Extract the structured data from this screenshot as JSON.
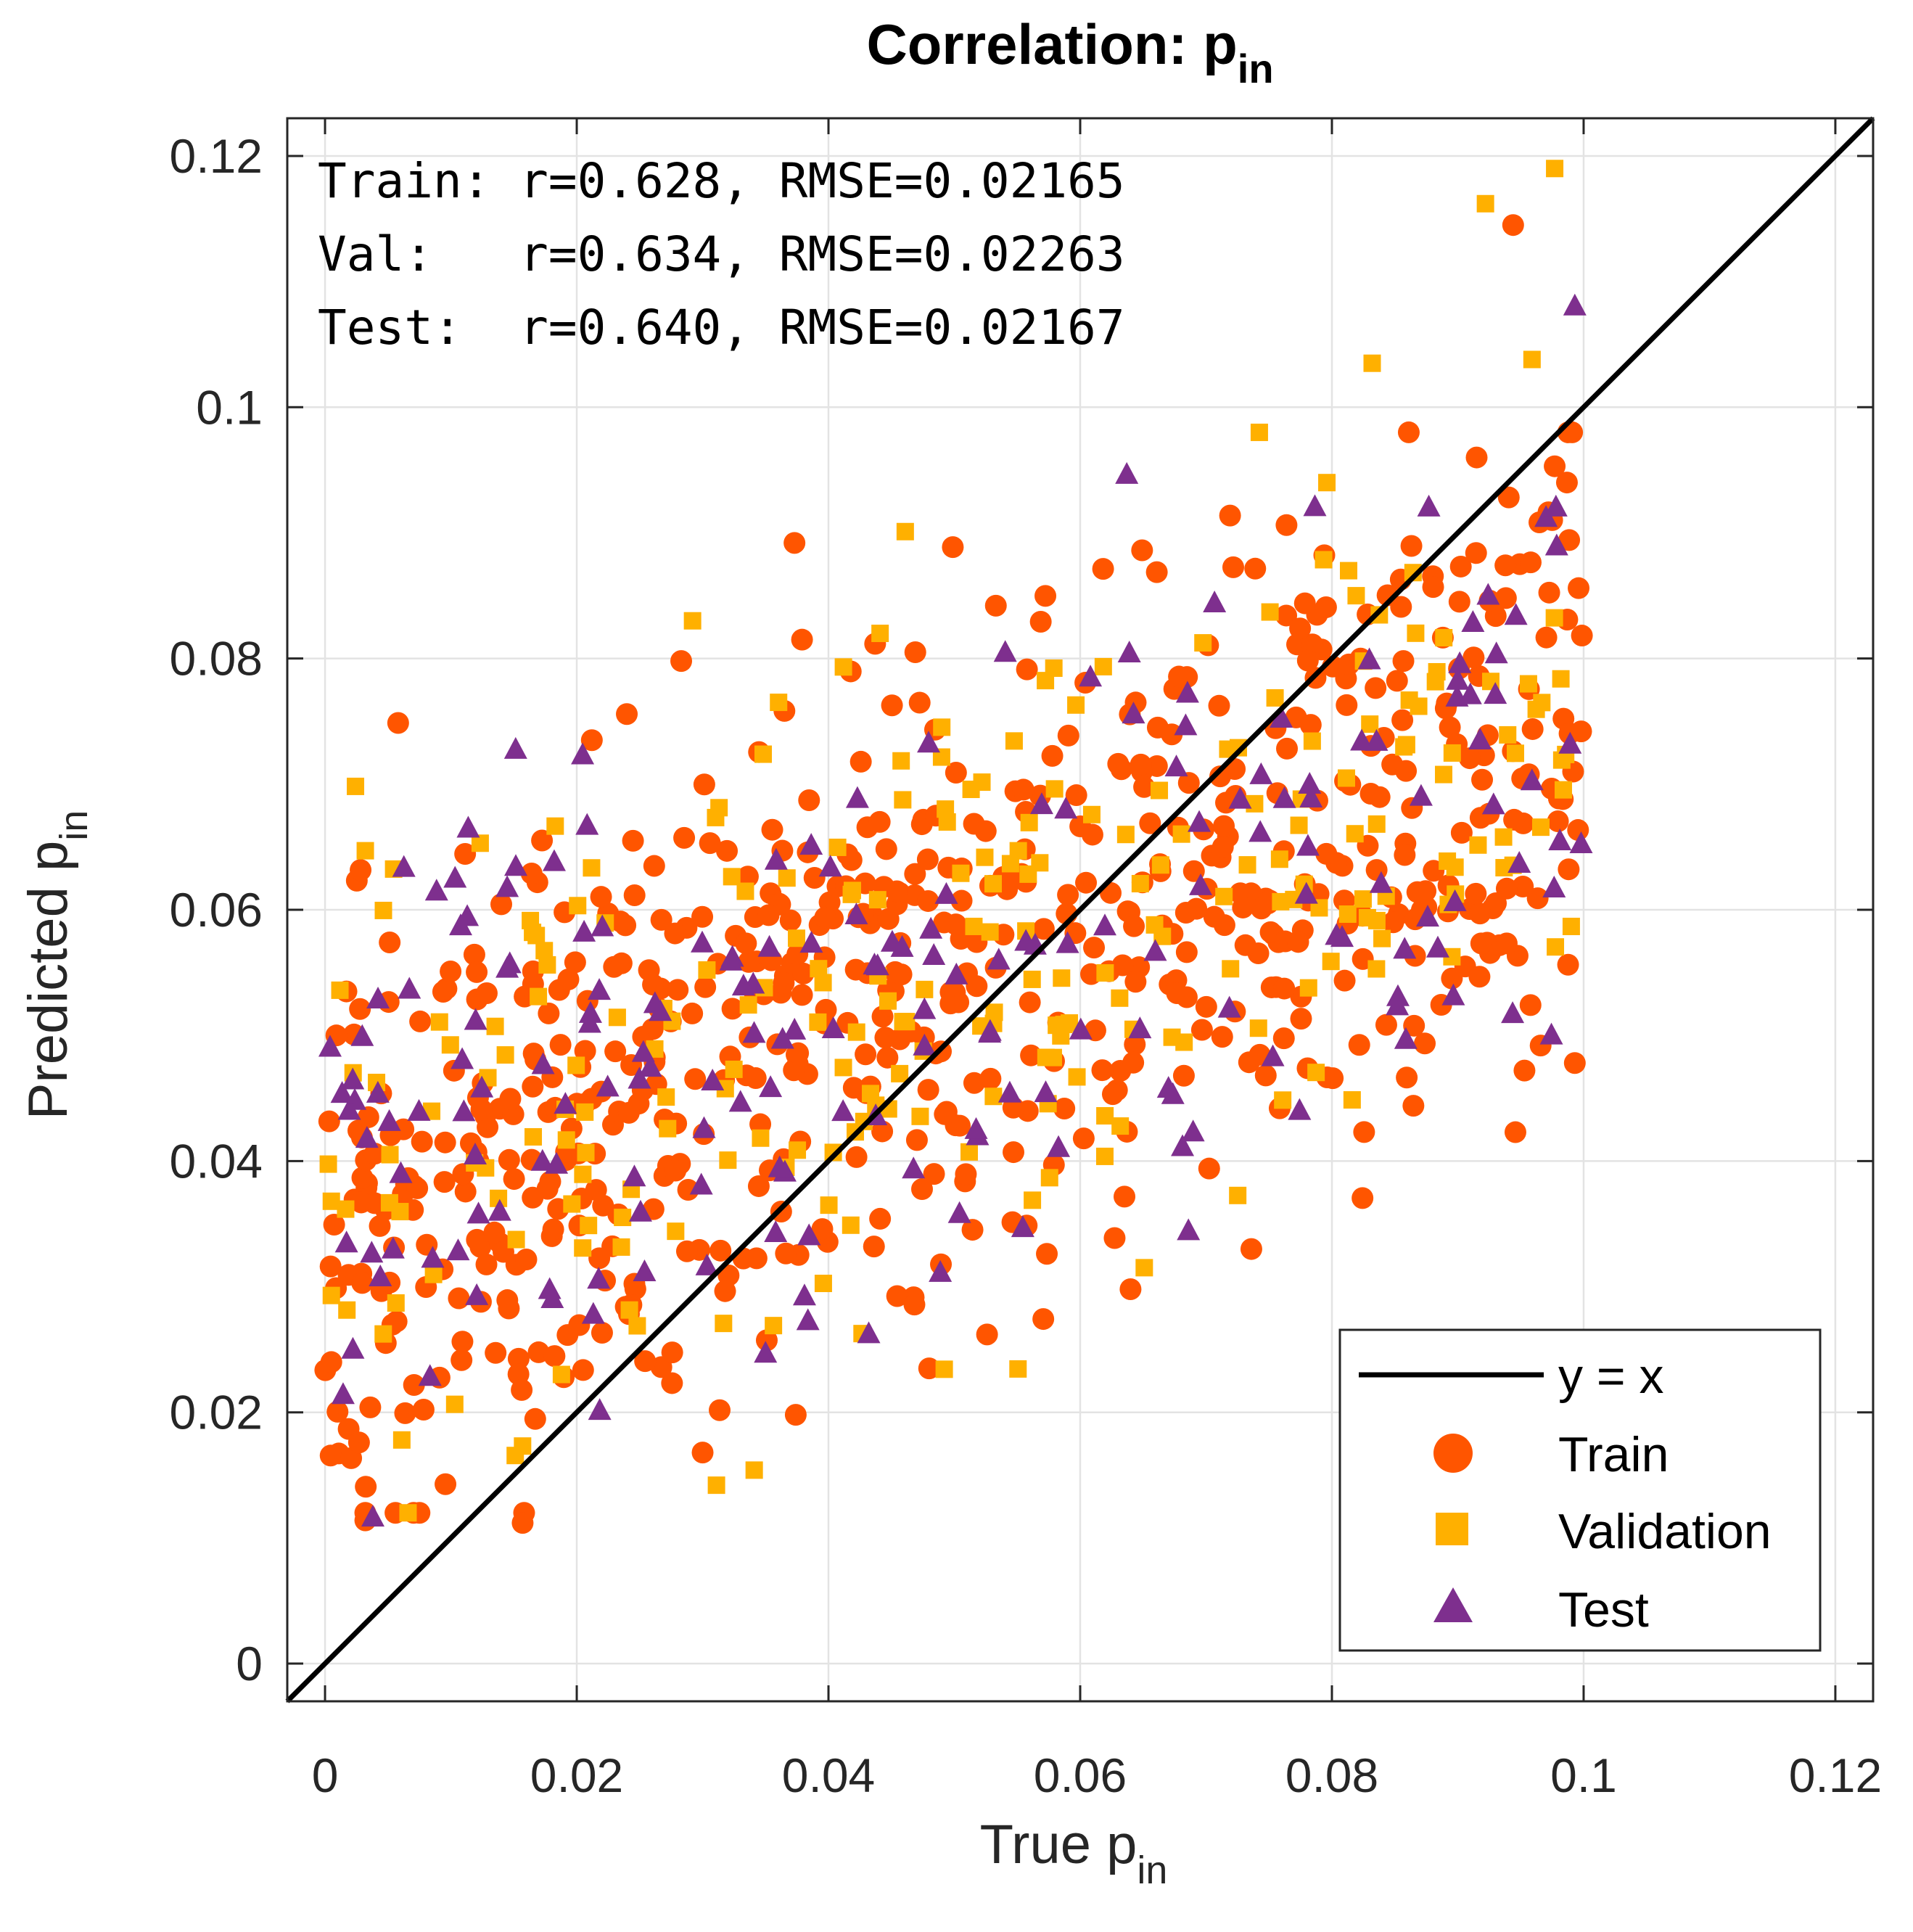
{
  "chart_data": {
    "type": "scatter",
    "title": "Correlation: p",
    "title_sub": "in",
    "xlabel": "True p",
    "xlabel_sub": "in",
    "ylabel": "Predicted p",
    "ylabel_sub": "in",
    "xlim": [
      -0.003,
      0.123
    ],
    "ylim": [
      -0.003,
      0.123
    ],
    "xticks": [
      0,
      0.02,
      0.04,
      0.06,
      0.08,
      0.1,
      0.12
    ],
    "yticks": [
      0,
      0.02,
      0.04,
      0.06,
      0.08,
      0.1,
      0.12
    ],
    "xtick_labels": [
      "0",
      "0.02",
      "0.04",
      "0.06",
      "0.08",
      "0.1",
      "0.12"
    ],
    "ytick_labels": [
      "0",
      "0.02",
      "0.04",
      "0.06",
      "0.08",
      "0.1",
      "0.12"
    ],
    "grid": true,
    "legend_position": "bottom-right",
    "stats": [
      "Train: r=0.628, RMSE=0.02165",
      "Val:   r=0.634, RMSE=0.02263",
      "Test:  r=0.640, RMSE=0.02167"
    ],
    "reference_line": {
      "name": "y = x",
      "slope": 1,
      "intercept": 0,
      "color": "#000000"
    },
    "series": [
      {
        "name": "Train",
        "marker": "circle",
        "color": "#FF5500",
        "count": 700,
        "trend": {
          "y_at_x0": 0.036,
          "y_at_x01": 0.074,
          "spread": 0.0125
        },
        "points": [
          [
            0.0373,
            0.0892
          ],
          [
            0.0944,
            0.1145
          ],
          [
            0.0283,
            0.0798
          ],
          [
            0.0212,
            0.0735
          ],
          [
            0.0533,
            0.0842
          ],
          [
            0.0915,
            0.096
          ],
          [
            0.0977,
            0.0953
          ],
          [
            0.048,
            0.0235
          ],
          [
            0.0157,
            0.0112
          ],
          [
            0.0032,
            0.0114
          ],
          [
            0.0374,
            0.0198
          ],
          [
            0.03,
            0.0168
          ],
          [
            0.0526,
            0.0262
          ],
          [
            0.064,
            0.0298
          ],
          [
            0.0736,
            0.033
          ],
          [
            0.0993,
            0.0478
          ],
          [
            0.0953,
            0.0472
          ],
          [
            0.0998,
            0.0742
          ],
          [
            0.0987,
            0.0831
          ],
          [
            0.0996,
            0.0856
          ],
          [
            0.0379,
            0.0815
          ],
          [
            0.0469,
            0.0805
          ],
          [
            0.0017,
            0.0535
          ],
          [
            0.0009,
            0.05
          ],
          [
            0.0005,
            0.024
          ],
          [
            0.0027,
            0.0176
          ]
        ]
      },
      {
        "name": "Validation",
        "marker": "square",
        "color": "#FFB000",
        "count": 260,
        "trend": {
          "y_at_x0": 0.037,
          "y_at_x01": 0.072,
          "spread": 0.013
        },
        "points": [
          [
            0.0977,
            0.119
          ],
          [
            0.0922,
            0.1162
          ],
          [
            0.0832,
            0.1035
          ],
          [
            0.0959,
            0.1038
          ],
          [
            0.0796,
            0.094
          ],
          [
            0.0461,
            0.0901
          ],
          [
            0.0292,
            0.083
          ],
          [
            0.0441,
            0.082
          ],
          [
            0.0032,
            0.0647
          ],
          [
            0.0311,
            0.0142
          ],
          [
            0.0341,
            0.0154
          ],
          [
            0.0061,
            0.0178
          ],
          [
            0.0005,
            0.0368
          ],
          [
            0.0005,
            0.0293
          ]
        ]
      },
      {
        "name": "Test",
        "marker": "triangle",
        "color": "#7E2F8E",
        "count": 200,
        "trend": {
          "y_at_x0": 0.037,
          "y_at_x01": 0.073,
          "spread": 0.013
        },
        "points": [
          [
            0.0993,
            0.108
          ],
          [
            0.0637,
            0.0946
          ],
          [
            0.0978,
            0.092
          ],
          [
            0.0877,
            0.092
          ],
          [
            0.0004,
            0.049
          ],
          [
            0.0038,
            0.0116
          ],
          [
            0.0022,
            0.0464
          ],
          [
            0.0113,
            0.0594
          ],
          [
            0.0998,
            0.0652
          ],
          [
            0.0432,
            0.0262
          ],
          [
            0.0686,
            0.0344
          ]
        ]
      }
    ]
  }
}
